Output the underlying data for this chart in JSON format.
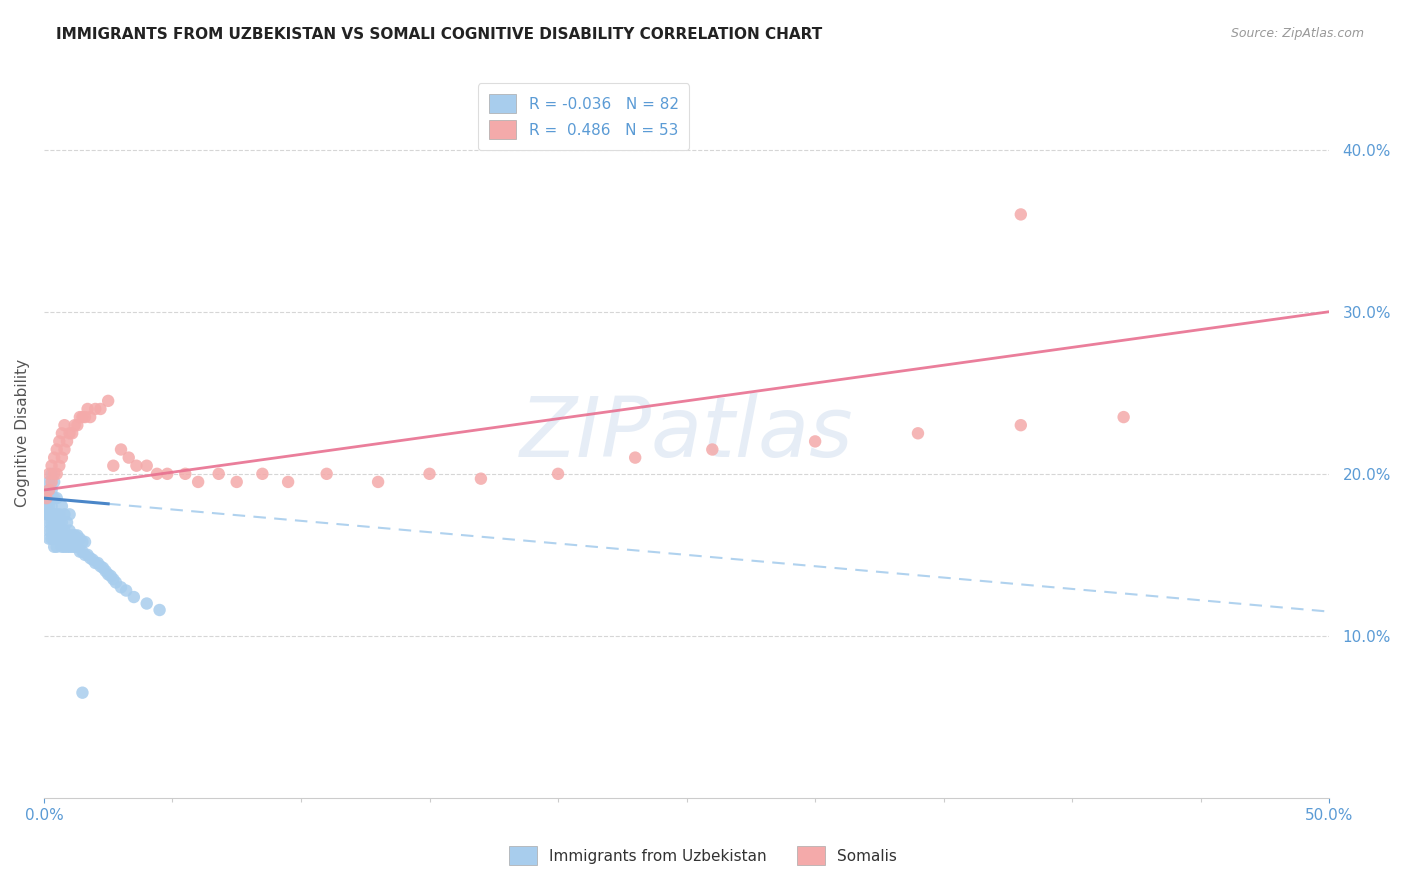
{
  "title": "IMMIGRANTS FROM UZBEKISTAN VS SOMALI COGNITIVE DISABILITY CORRELATION CHART",
  "source": "Source: ZipAtlas.com",
  "ylabel": "Cognitive Disability",
  "legend_R1": "-0.036",
  "legend_N1": "82",
  "legend_R2": "0.486",
  "legend_N2": "53",
  "legend_label1": "Immigrants from Uzbekistan",
  "legend_label2": "Somalis",
  "color_blue": "#A8CDED",
  "color_pink": "#F4AAAA",
  "color_blue_dark": "#4A86C8",
  "color_pink_dark": "#E87090",
  "color_axis_labels": "#5B9BD5",
  "xlim": [
    0.0,
    0.5
  ],
  "ylim": [
    0.0,
    0.45
  ],
  "x_minor_ticks": [
    0.05,
    0.1,
    0.15,
    0.2,
    0.25,
    0.3,
    0.35,
    0.4,
    0.45,
    0.5
  ],
  "y_ticks": [
    0.1,
    0.2,
    0.3,
    0.4
  ],
  "trend_blue_x0": 0.0,
  "trend_blue_x1": 0.5,
  "trend_blue_y0": 0.185,
  "trend_blue_y1": 0.115,
  "trend_blue_solid_x1": 0.025,
  "trend_pink_x0": 0.0,
  "trend_pink_x1": 0.5,
  "trend_pink_y0": 0.19,
  "trend_pink_y1": 0.3,
  "uzbek_x": [
    0.001,
    0.001,
    0.001,
    0.002,
    0.002,
    0.002,
    0.002,
    0.002,
    0.002,
    0.002,
    0.002,
    0.003,
    0.003,
    0.003,
    0.003,
    0.003,
    0.003,
    0.003,
    0.003,
    0.004,
    0.004,
    0.004,
    0.004,
    0.004,
    0.004,
    0.004,
    0.005,
    0.005,
    0.005,
    0.005,
    0.005,
    0.005,
    0.006,
    0.006,
    0.006,
    0.006,
    0.007,
    0.007,
    0.007,
    0.007,
    0.007,
    0.008,
    0.008,
    0.008,
    0.008,
    0.009,
    0.009,
    0.009,
    0.01,
    0.01,
    0.01,
    0.01,
    0.011,
    0.011,
    0.012,
    0.012,
    0.013,
    0.013,
    0.014,
    0.014,
    0.015,
    0.015,
    0.016,
    0.016,
    0.017,
    0.018,
    0.019,
    0.02,
    0.021,
    0.022,
    0.023,
    0.024,
    0.025,
    0.026,
    0.027,
    0.028,
    0.03,
    0.032,
    0.035,
    0.04,
    0.045,
    0.015
  ],
  "uzbek_y": [
    0.175,
    0.18,
    0.185,
    0.16,
    0.165,
    0.17,
    0.175,
    0.18,
    0.185,
    0.19,
    0.195,
    0.16,
    0.165,
    0.17,
    0.175,
    0.18,
    0.185,
    0.19,
    0.2,
    0.155,
    0.16,
    0.165,
    0.17,
    0.175,
    0.185,
    0.195,
    0.155,
    0.16,
    0.165,
    0.17,
    0.175,
    0.185,
    0.16,
    0.165,
    0.17,
    0.175,
    0.155,
    0.16,
    0.165,
    0.17,
    0.18,
    0.155,
    0.16,
    0.165,
    0.175,
    0.155,
    0.16,
    0.17,
    0.155,
    0.16,
    0.165,
    0.175,
    0.155,
    0.162,
    0.155,
    0.162,
    0.155,
    0.162,
    0.152,
    0.16,
    0.152,
    0.158,
    0.15,
    0.158,
    0.15,
    0.148,
    0.147,
    0.145,
    0.145,
    0.143,
    0.142,
    0.14,
    0.138,
    0.137,
    0.135,
    0.133,
    0.13,
    0.128,
    0.124,
    0.12,
    0.116,
    0.065
  ],
  "somali_x": [
    0.001,
    0.002,
    0.002,
    0.003,
    0.003,
    0.004,
    0.004,
    0.005,
    0.005,
    0.006,
    0.006,
    0.007,
    0.007,
    0.008,
    0.008,
    0.009,
    0.01,
    0.011,
    0.012,
    0.013,
    0.014,
    0.015,
    0.016,
    0.017,
    0.018,
    0.02,
    0.022,
    0.025,
    0.027,
    0.03,
    0.033,
    0.036,
    0.04,
    0.044,
    0.048,
    0.055,
    0.06,
    0.068,
    0.075,
    0.085,
    0.095,
    0.11,
    0.13,
    0.15,
    0.17,
    0.2,
    0.23,
    0.26,
    0.3,
    0.34,
    0.38,
    0.42,
    0.38
  ],
  "somali_y": [
    0.185,
    0.19,
    0.2,
    0.195,
    0.205,
    0.2,
    0.21,
    0.2,
    0.215,
    0.205,
    0.22,
    0.21,
    0.225,
    0.215,
    0.23,
    0.22,
    0.225,
    0.225,
    0.23,
    0.23,
    0.235,
    0.235,
    0.235,
    0.24,
    0.235,
    0.24,
    0.24,
    0.245,
    0.205,
    0.215,
    0.21,
    0.205,
    0.205,
    0.2,
    0.2,
    0.2,
    0.195,
    0.2,
    0.195,
    0.2,
    0.195,
    0.2,
    0.195,
    0.2,
    0.197,
    0.2,
    0.21,
    0.215,
    0.22,
    0.225,
    0.23,
    0.235,
    0.36
  ]
}
